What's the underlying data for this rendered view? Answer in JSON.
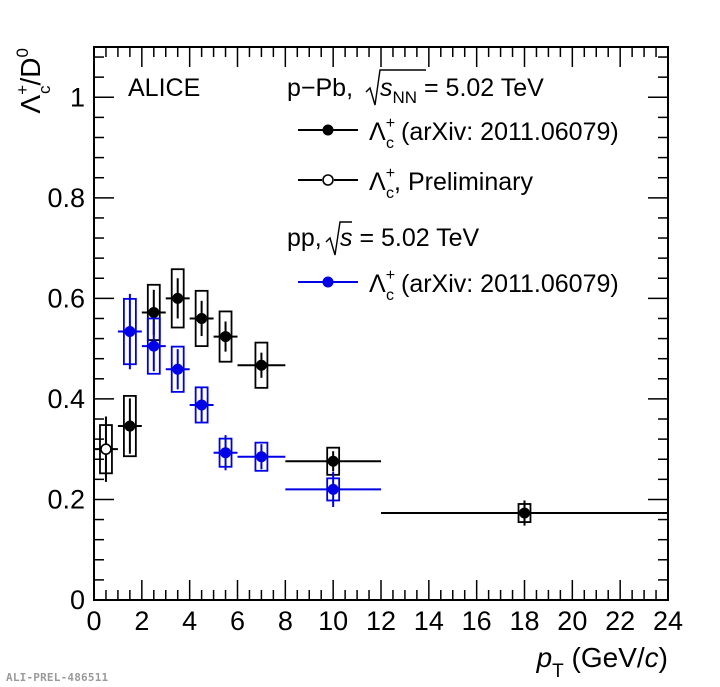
{
  "chart_data": {
    "type": "scatter",
    "experiment": "ALICE",
    "xlabel": {
      "var": "p",
      "sub": "T",
      "rest": " (GeV/",
      "italic": "c",
      "close": ")"
    },
    "ylabel": {
      "lambda": "Λ",
      "sup": "+",
      "sub": "c",
      "rest": "/D",
      "rest_sup": "0"
    },
    "xlim": [
      0,
      24
    ],
    "ylim": [
      0,
      1.1
    ],
    "x_ticks": [
      0,
      2,
      4,
      6,
      8,
      10,
      12,
      14,
      16,
      18,
      20,
      22,
      24
    ],
    "y_ticks": [
      0,
      0.2,
      0.4,
      0.6,
      0.8,
      1
    ],
    "y_tick_labels": [
      "0",
      "0.2",
      "0.4",
      "0.6",
      "0.8",
      "1"
    ],
    "system_headers": {
      "ppb": {
        "pre": "p−Pb, ",
        "s": "s",
        "sub": "NN",
        "post": " = 5.02 TeV"
      },
      "pp": {
        "pre": "pp, ",
        "s": "s",
        "post": " = 5.02 TeV"
      }
    },
    "series": [
      {
        "name": "pPb_published",
        "legend": "Λc+ (arXiv: 2011.06079)",
        "legend_parts": {
          "lambda": "Λ",
          "sup": "+",
          "sub": "c",
          "text": " (arXiv: 2011.06079)"
        },
        "color": "#000000",
        "marker": "filled-circle",
        "points": [
          {
            "x": 1.5,
            "y": 0.346,
            "xlo": 1,
            "xhi": 2,
            "stat": 0.055,
            "syst": 0.06
          },
          {
            "x": 2.5,
            "y": 0.572,
            "xlo": 2,
            "xhi": 3,
            "stat": 0.045,
            "syst": 0.055
          },
          {
            "x": 3.5,
            "y": 0.6,
            "xlo": 3,
            "xhi": 4,
            "stat": 0.04,
            "syst": 0.058
          },
          {
            "x": 4.5,
            "y": 0.56,
            "xlo": 4,
            "xhi": 5,
            "stat": 0.035,
            "syst": 0.055
          },
          {
            "x": 5.5,
            "y": 0.524,
            "xlo": 5,
            "xhi": 6,
            "stat": 0.03,
            "syst": 0.05
          },
          {
            "x": 7.0,
            "y": 0.467,
            "xlo": 6,
            "xhi": 8,
            "stat": 0.025,
            "syst": 0.045
          },
          {
            "x": 10.0,
            "y": 0.276,
            "xlo": 8,
            "xhi": 12,
            "stat": 0.02,
            "syst": 0.027
          },
          {
            "x": 18.0,
            "y": 0.173,
            "xlo": 12,
            "xhi": 24,
            "stat": 0.025,
            "syst": 0.018
          }
        ]
      },
      {
        "name": "pPb_preliminary",
        "legend": "Λc+, Preliminary",
        "legend_parts": {
          "lambda": "Λ",
          "sup": "+",
          "sub": "c",
          "text": ", Preliminary"
        },
        "color": "#000000",
        "marker": "open-circle",
        "points": [
          {
            "x": 0.5,
            "y": 0.3,
            "xlo": 0,
            "xhi": 1,
            "stat": 0.065,
            "syst": 0.048
          }
        ]
      },
      {
        "name": "pp",
        "legend": "Λc+ (arXiv: 2011.06079)",
        "legend_parts": {
          "lambda": "Λ",
          "sup": "+",
          "sub": "c",
          "text": " (arXiv: 2011.06079)"
        },
        "color": "#0000e6",
        "marker": "filled-circle",
        "points": [
          {
            "x": 1.5,
            "y": 0.534,
            "xlo": 1,
            "xhi": 2,
            "stat": 0.075,
            "syst": 0.065
          },
          {
            "x": 2.5,
            "y": 0.505,
            "xlo": 2,
            "xhi": 3,
            "stat": 0.05,
            "syst": 0.055
          },
          {
            "x": 3.5,
            "y": 0.459,
            "xlo": 3,
            "xhi": 4,
            "stat": 0.04,
            "syst": 0.045
          },
          {
            "x": 4.5,
            "y": 0.388,
            "xlo": 4,
            "xhi": 5,
            "stat": 0.035,
            "syst": 0.035
          },
          {
            "x": 5.5,
            "y": 0.293,
            "xlo": 5,
            "xhi": 6,
            "stat": 0.035,
            "syst": 0.028
          },
          {
            "x": 7.0,
            "y": 0.285,
            "xlo": 6,
            "xhi": 8,
            "stat": 0.025,
            "syst": 0.028
          },
          {
            "x": 10.0,
            "y": 0.22,
            "xlo": 8,
            "xhi": 12,
            "stat": 0.035,
            "syst": 0.022
          }
        ]
      }
    ]
  },
  "footer": {
    "label": "ALI-PREL-486511"
  }
}
